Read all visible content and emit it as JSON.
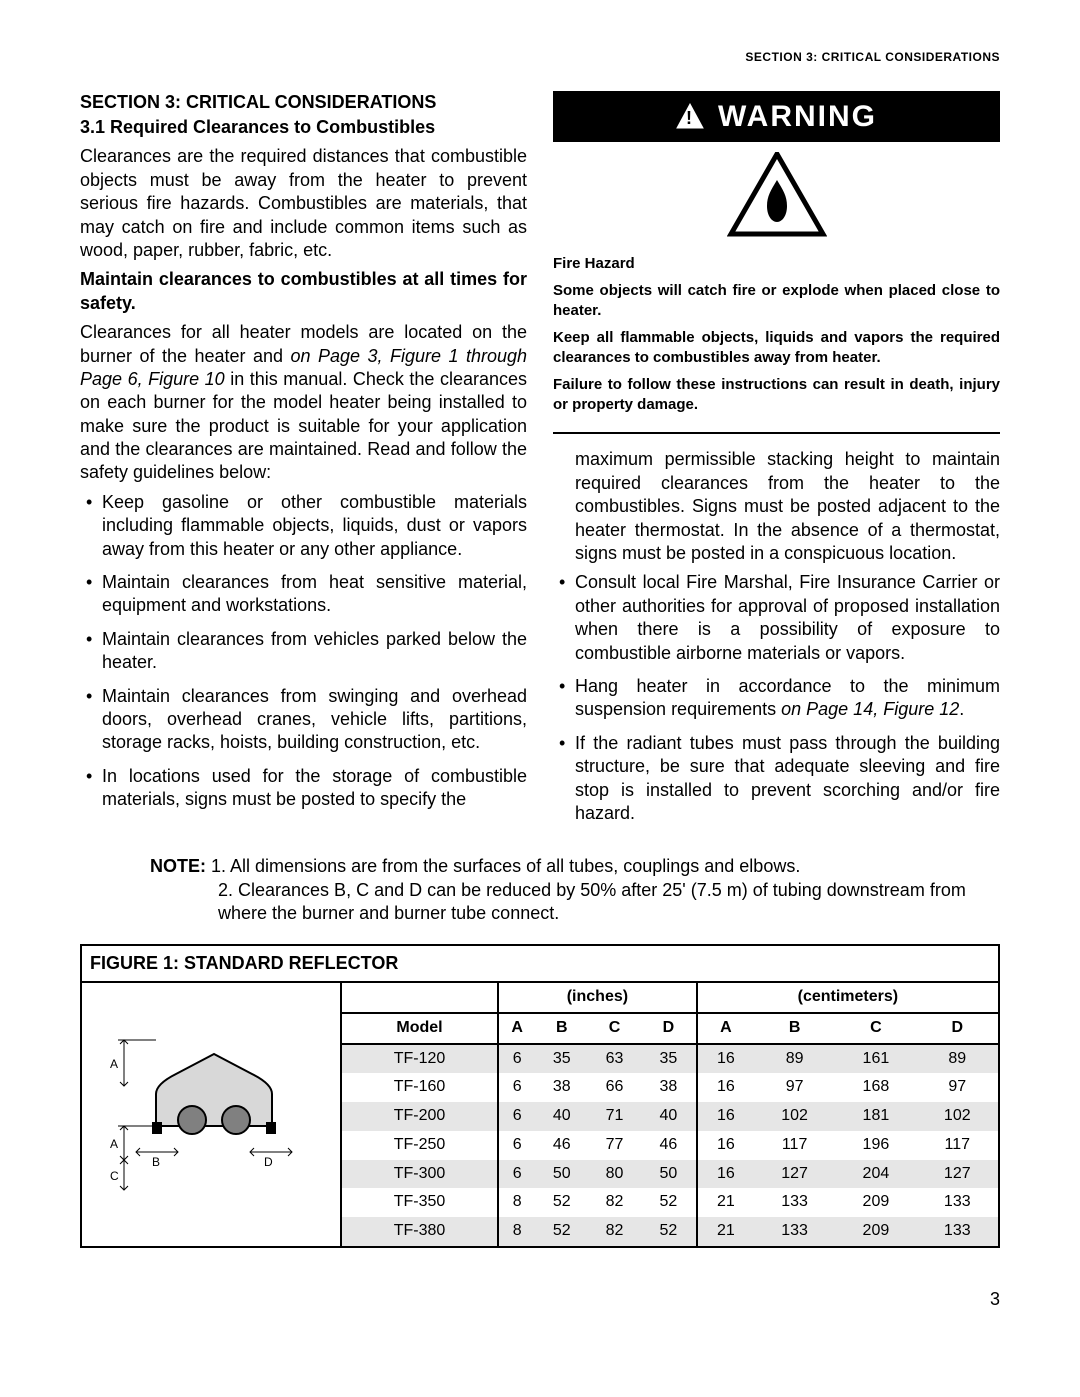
{
  "pageHeader": "SECTION 3: CRITICAL CONSIDERATIONS",
  "sectionTitle": "SECTION 3: CRITICAL CONSIDERATIONS",
  "subsectionTitle": "3.1 Required Clearances to Combustibles",
  "leftCol": {
    "para1": "Clearances are the required distances that combustible objects must be away from the heater to prevent serious fire hazards. Combustibles are materials, that may catch on fire and include common items such as wood, paper, rubber, fabric, etc.",
    "boldLine1": "Maintain clearances to combustibles at all times for safety.",
    "para2_pre": "Clearances for all heater models are located on the burner of the heater and ",
    "para2_italic": "on Page 3, Figure 1 through Page 6, Figure 10",
    "para2_post": " in this manual. Check the clearances on each burner for the model heater being installed to make sure the product is suitable for your application and the clearances are maintained. Read and follow the safety guidelines below:",
    "bullets": [
      "Keep gasoline or other combustible materials including flammable objects, liquids, dust or vapors away from this heater or any other appliance.",
      "Maintain clearances from heat sensitive material, equipment and workstations.",
      "Maintain clearances from vehicles parked below the heater.",
      "Maintain clearances from swinging and overhead doors, overhead cranes, vehicle lifts, partitions, storage racks, hoists, building construction, etc.",
      "In locations used for the storage of combustible materials, signs must be posted to specify the"
    ]
  },
  "warning": {
    "header": "WARNING",
    "hazardLabel": "Fire Hazard",
    "lines": [
      "Some objects will catch fire or explode when placed close to heater.",
      "Keep all flammable objects, liquids and vapors the required clearances to combustibles away from heater.",
      "Failure to follow these instructions can result in death, injury or property damage."
    ]
  },
  "rightCol": {
    "continuation": "maximum permissible stacking height to maintain required clearances from the heater to the combustibles. Signs must be posted adjacent to the heater thermostat. In the absence of a thermostat, signs must be posted in a conspicuous location.",
    "bullets": [
      "Consult local Fire Marshal, Fire Insurance Carrier or other authorities for approval of proposed installation when there is a possibility of exposure to combustible airborne materials or vapors."
    ],
    "bullet2_pre": "Hang heater in accordance to the minimum suspension requirements ",
    "bullet2_italic": "on Page 14, Figure 12",
    "bullet2_post": ".",
    "bullet3": "If the radiant tubes must pass through the building structure, be sure that adequate sleeving and fire stop is installed to prevent scorching and/or fire hazard."
  },
  "note": {
    "label": "NOTE:",
    "line1": "1. All dimensions are from the surfaces of all tubes, couplings and elbows.",
    "line2": "2. Clearances B, C and D can be reduced by 50% after 25' (7.5 m) of tubing downstream from where the burner and burner tube connect."
  },
  "figure": {
    "title": "FIGURE 1: STANDARD REFLECTOR",
    "unitGroups": [
      "(inches)",
      "(centimeters)"
    ],
    "headers": [
      "Model",
      "A",
      "B",
      "C",
      "D",
      "A",
      "B",
      "C",
      "D"
    ],
    "rows": [
      [
        "TF-120",
        "6",
        "35",
        "63",
        "35",
        "16",
        "89",
        "161",
        "89"
      ],
      [
        "TF-160",
        "6",
        "38",
        "66",
        "38",
        "16",
        "97",
        "168",
        "97"
      ],
      [
        "TF-200",
        "6",
        "40",
        "71",
        "40",
        "16",
        "102",
        "181",
        "102"
      ],
      [
        "TF-250",
        "6",
        "46",
        "77",
        "46",
        "16",
        "117",
        "196",
        "117"
      ],
      [
        "TF-300",
        "6",
        "50",
        "80",
        "50",
        "16",
        "127",
        "204",
        "127"
      ],
      [
        "TF-350",
        "8",
        "52",
        "82",
        "52",
        "21",
        "133",
        "209",
        "133"
      ],
      [
        "TF-380",
        "8",
        "52",
        "82",
        "52",
        "21",
        "133",
        "209",
        "133"
      ]
    ],
    "diagramLabels": {
      "A": "A",
      "B": "B",
      "C": "C",
      "D": "D"
    },
    "colors": {
      "tableBorder": "#000000",
      "rowShade": "#e6e6e6",
      "background": "#ffffff",
      "reflectorFill": "#d8d8d8",
      "tubeFill": "#808080"
    }
  },
  "pageNumber": "3"
}
